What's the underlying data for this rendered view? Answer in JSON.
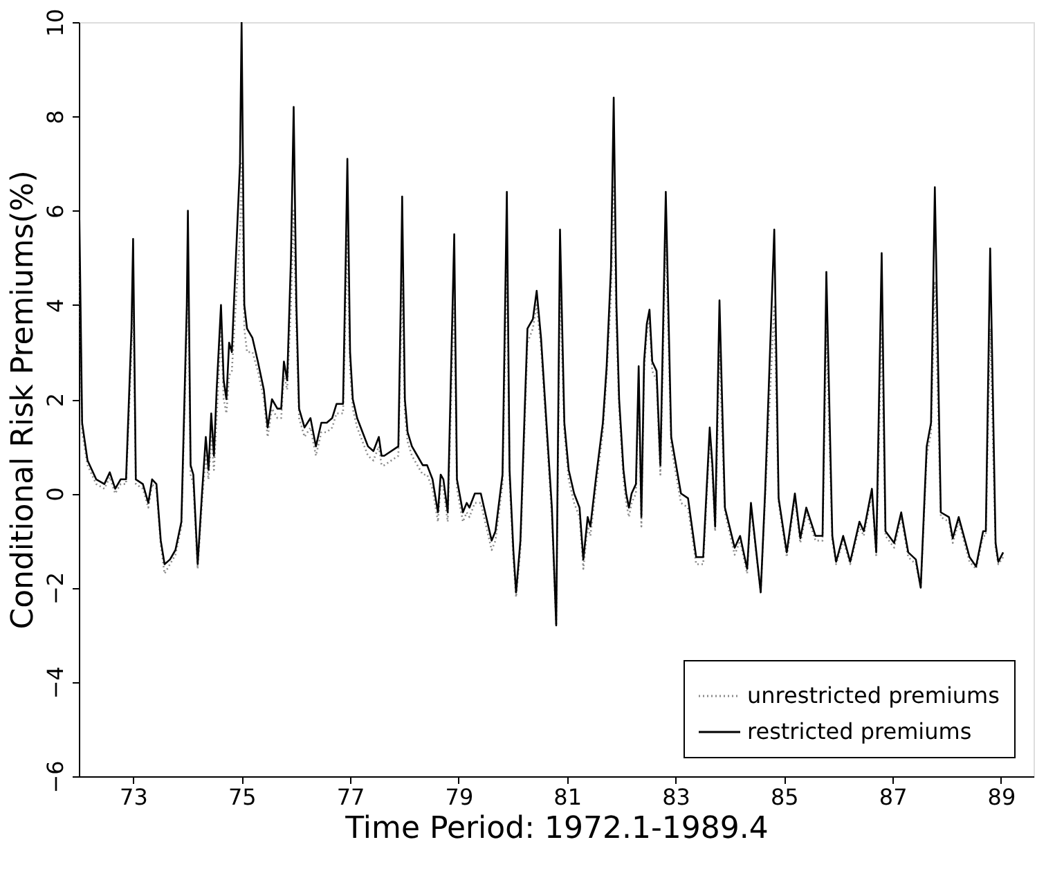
{
  "chart_data": {
    "type": "line",
    "xlabel": "Time Period: 1972.1-1989.4",
    "ylabel": "Conditional Risk Premiums(%)",
    "xlim": [
      72,
      89.6
    ],
    "ylim": [
      -6,
      10
    ],
    "xticks": [
      73,
      75,
      77,
      79,
      81,
      83,
      85,
      87,
      89
    ],
    "yticks": [
      -6,
      -4,
      -2,
      0,
      2,
      4,
      6,
      8,
      10
    ],
    "legend": "bottom right",
    "x": [
      72.01,
      72.06,
      72.16,
      72.32,
      72.47,
      72.57,
      72.67,
      72.77,
      72.87,
      72.97,
      73.0,
      73.05,
      73.18,
      73.28,
      73.35,
      73.43,
      73.51,
      73.58,
      73.68,
      73.78,
      73.89,
      73.99,
      74.01,
      74.06,
      74.11,
      74.19,
      74.27,
      74.34,
      74.39,
      74.44,
      74.49,
      74.54,
      74.62,
      74.67,
      74.72,
      74.77,
      74.82,
      74.97,
      75.0,
      75.05,
      75.1,
      75.2,
      75.3,
      75.41,
      75.48,
      75.56,
      75.66,
      75.73,
      75.78,
      75.84,
      75.91,
      75.96,
      76.01,
      76.06,
      76.16,
      76.27,
      76.37,
      76.47,
      76.57,
      76.67,
      76.75,
      76.87,
      76.92,
      76.95,
      77.0,
      77.05,
      77.13,
      77.23,
      77.33,
      77.43,
      77.53,
      77.58,
      77.63,
      77.89,
      77.94,
      77.96,
      78.01,
      78.06,
      78.14,
      78.24,
      78.34,
      78.42,
      78.52,
      78.62,
      78.67,
      78.72,
      78.8,
      78.9,
      78.92,
      78.97,
      79.08,
      79.15,
      79.2,
      79.3,
      79.41,
      79.51,
      79.61,
      79.68,
      79.81,
      79.89,
      79.94,
      80.01,
      80.06,
      80.14,
      80.22,
      80.27,
      80.37,
      80.44,
      80.52,
      80.62,
      80.72,
      80.8,
      80.87,
      80.95,
      81.03,
      81.13,
      81.23,
      81.3,
      81.38,
      81.43,
      81.53,
      81.66,
      81.73,
      81.81,
      81.86,
      81.91,
      81.96,
      82.04,
      82.09,
      82.14,
      82.19,
      82.27,
      82.32,
      82.37,
      82.42,
      82.47,
      82.52,
      82.57,
      82.65,
      82.72,
      82.82,
      82.92,
      83.1,
      83.23,
      83.38,
      83.51,
      83.63,
      83.68,
      83.73,
      83.81,
      83.91,
      84.09,
      84.19,
      84.32,
      84.39,
      84.57,
      84.65,
      84.82,
      84.9,
      85.05,
      85.2,
      85.3,
      85.41,
      85.58,
      85.71,
      85.78,
      85.89,
      85.96,
      86.09,
      86.22,
      86.39,
      86.47,
      86.62,
      86.7,
      86.8,
      86.87,
      87.03,
      87.16,
      87.29,
      87.43,
      87.52,
      87.63,
      87.71,
      87.78,
      87.89,
      88.04,
      88.11,
      88.22,
      88.42,
      88.54,
      88.67,
      88.72,
      88.8,
      88.9,
      88.95,
      89.04
    ],
    "series": [
      {
        "name": "unrestricted premiums",
        "color": "#8a8a8a",
        "line_style": "dotted",
        "values": [
          5.0,
          1.3,
          0.6,
          0.2,
          0.1,
          0.35,
          0.0,
          0.2,
          0.2,
          3.0,
          4.5,
          0.2,
          0.1,
          -0.3,
          0.2,
          0.1,
          -1.1,
          -1.7,
          -1.5,
          -1.3,
          -0.7,
          3.5,
          5.0,
          0.4,
          0.2,
          -1.6,
          -0.2,
          0.8,
          0.3,
          1.2,
          0.5,
          1.6,
          3.5,
          2.0,
          1.7,
          2.5,
          2.6,
          5.5,
          7.0,
          3.5,
          3.0,
          3.0,
          2.6,
          2.0,
          1.2,
          1.8,
          1.6,
          1.6,
          2.5,
          2.2,
          4.0,
          6.0,
          3.5,
          1.6,
          1.2,
          1.4,
          0.8,
          1.3,
          1.3,
          1.4,
          1.7,
          1.7,
          4.0,
          5.5,
          2.6,
          1.8,
          1.4,
          1.1,
          0.8,
          0.7,
          1.0,
          0.6,
          0.6,
          0.8,
          3.5,
          4.5,
          1.7,
          1.1,
          0.8,
          0.6,
          0.4,
          0.4,
          0.1,
          -0.6,
          0.2,
          0.1,
          -0.6,
          3.5,
          4.0,
          0.1,
          -0.6,
          -0.4,
          -0.5,
          -0.2,
          -0.2,
          -0.7,
          -1.2,
          -1.0,
          0.2,
          5.0,
          0.3,
          -1.4,
          -2.2,
          -1.2,
          1.5,
          3.2,
          3.5,
          4.0,
          3.1,
          1.3,
          -0.5,
          -2.8,
          4.5,
          1.3,
          0.3,
          -0.2,
          -0.5,
          -1.6,
          -0.7,
          -0.9,
          0.1,
          1.3,
          2.5,
          4.2,
          6.5,
          3.5,
          1.8,
          0.3,
          -0.2,
          -0.5,
          -0.2,
          0.0,
          2.4,
          -0.7,
          2.6,
          3.4,
          3.7,
          2.6,
          2.4,
          0.4,
          5.5,
          1.0,
          -0.2,
          -0.3,
          -1.5,
          -1.5,
          1.2,
          0.4,
          -0.8,
          3.0,
          -0.4,
          -1.3,
          -1.0,
          -1.7,
          -0.3,
          -2.1,
          -0.1,
          4.0,
          -0.2,
          -1.35,
          -0.1,
          -1.05,
          -0.4,
          -1.0,
          -1.0,
          3.5,
          -1.0,
          -1.5,
          -1.0,
          -1.5,
          -0.7,
          -0.9,
          0.0,
          -1.35,
          3.5,
          -0.9,
          -1.15,
          -0.5,
          -1.35,
          -1.5,
          -2.0,
          0.8,
          1.3,
          4.5,
          -0.5,
          -0.6,
          -1.05,
          -0.6,
          -1.45,
          -1.6,
          -0.9,
          -0.9,
          3.5,
          -1.15,
          -1.5,
          -1.35
        ]
      },
      {
        "name": "restricted premiums",
        "color": "#000000",
        "line_style": "solid",
        "values": [
          5.8,
          1.5,
          0.7,
          0.3,
          0.2,
          0.45,
          0.1,
          0.3,
          0.3,
          3.5,
          5.4,
          0.3,
          0.2,
          -0.2,
          0.3,
          0.2,
          -1.0,
          -1.5,
          -1.4,
          -1.2,
          -0.6,
          4.0,
          6.0,
          0.6,
          0.4,
          -1.5,
          0.0,
          1.2,
          0.5,
          1.7,
          0.8,
          2.2,
          4.0,
          2.4,
          2.0,
          3.2,
          3.0,
          7.0,
          10,
          4.0,
          3.5,
          3.3,
          2.8,
          2.2,
          1.4,
          2.0,
          1.8,
          1.8,
          2.8,
          2.4,
          5.0,
          8.2,
          4.0,
          1.8,
          1.4,
          1.6,
          1.0,
          1.5,
          1.5,
          1.6,
          1.9,
          1.9,
          5.0,
          7.1,
          3.0,
          2.0,
          1.6,
          1.3,
          1.0,
          0.9,
          1.2,
          0.8,
          0.8,
          1.0,
          4.5,
          6.3,
          2.0,
          1.3,
          1.0,
          0.8,
          0.6,
          0.6,
          0.3,
          -0.4,
          0.4,
          0.3,
          -0.4,
          4.5,
          5.5,
          0.3,
          -0.4,
          -0.2,
          -0.3,
          0.0,
          0.0,
          -0.5,
          -1.0,
          -0.8,
          0.4,
          6.4,
          0.5,
          -1.2,
          -2.1,
          -1.0,
          1.8,
          3.5,
          3.7,
          4.3,
          3.3,
          1.5,
          -0.3,
          -2.8,
          5.6,
          1.5,
          0.5,
          0.0,
          -0.3,
          -1.4,
          -0.5,
          -0.7,
          0.3,
          1.5,
          2.7,
          4.8,
          8.4,
          4.0,
          2.0,
          0.5,
          0.0,
          -0.3,
          0.0,
          0.2,
          2.7,
          -0.5,
          2.8,
          3.6,
          3.9,
          2.8,
          2.6,
          0.6,
          6.4,
          1.2,
          0.0,
          -0.1,
          -1.35,
          -1.35,
          1.4,
          0.6,
          -0.7,
          4.1,
          -0.3,
          -1.15,
          -0.9,
          -1.6,
          -0.2,
          -2.1,
          0.0,
          5.6,
          -0.1,
          -1.25,
          0.0,
          -0.95,
          -0.3,
          -0.9,
          -0.9,
          4.7,
          -0.9,
          -1.45,
          -0.9,
          -1.45,
          -0.6,
          -0.8,
          0.1,
          -1.25,
          5.1,
          -0.8,
          -1.05,
          -0.4,
          -1.25,
          -1.4,
          -2.0,
          1.0,
          1.5,
          6.5,
          -0.4,
          -0.5,
          -0.95,
          -0.5,
          -1.35,
          -1.55,
          -0.8,
          -0.8,
          5.2,
          -1.05,
          -1.45,
          -1.25
        ]
      }
    ]
  }
}
